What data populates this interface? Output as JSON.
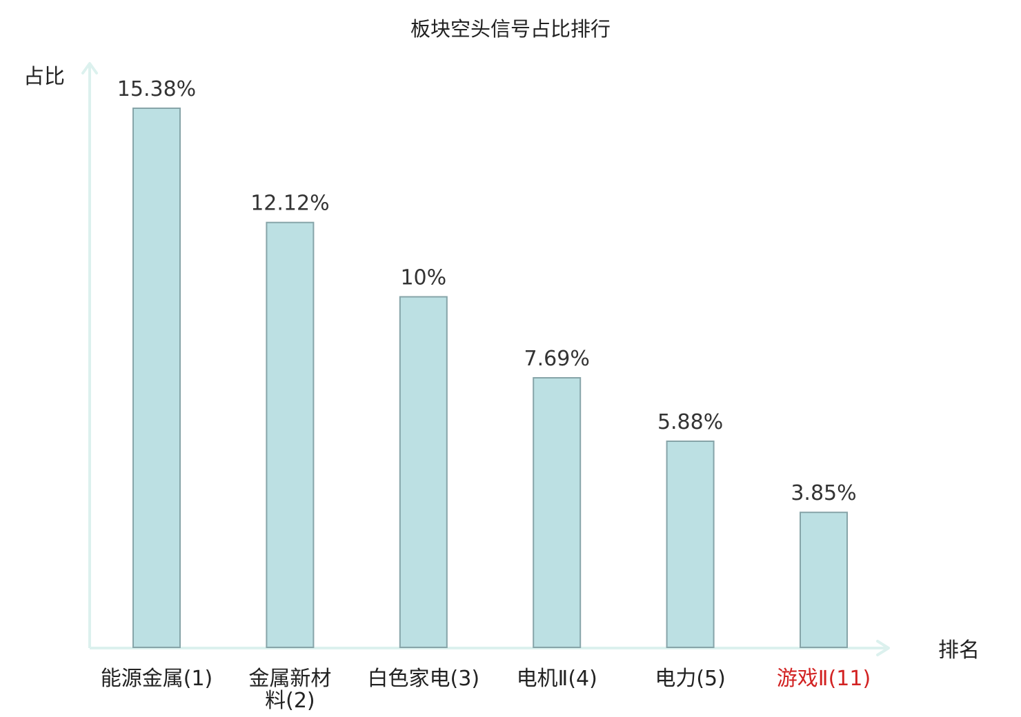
{
  "chart_data": {
    "type": "bar",
    "title": "板块空头信号占比排行",
    "ylabel": "占比",
    "xlabel": "排名",
    "grid": false,
    "legend": "none",
    "ylim": [
      0,
      16.5
    ],
    "categories": [
      {
        "name": "能源金属",
        "rank": "(1)",
        "lines": [
          "能源金属(1)"
        ],
        "highlight": false
      },
      {
        "name": "金属新材料",
        "rank": "(2)",
        "lines": [
          "金属新材",
          "料(2)"
        ],
        "highlight": false
      },
      {
        "name": "白色家电",
        "rank": "(3)",
        "lines": [
          "白色家电(3)"
        ],
        "highlight": false
      },
      {
        "name": "电机Ⅱ",
        "rank": "(4)",
        "lines": [
          "电机Ⅱ(4)"
        ],
        "highlight": false
      },
      {
        "name": "电力",
        "rank": "(5)",
        "lines": [
          "电力(5)"
        ],
        "highlight": false
      },
      {
        "name": "游戏Ⅱ",
        "rank": "(11)",
        "lines": [
          "游戏Ⅱ(11)"
        ],
        "highlight": true
      }
    ],
    "values": [
      15.38,
      12.12,
      10,
      7.69,
      5.88,
      3.85
    ],
    "value_labels": [
      "15.38%",
      "12.12%",
      "10%",
      "7.69%",
      "5.88%",
      "3.85%"
    ]
  },
  "colors": {
    "bar_fill": "#bce0e3",
    "bar_stroke": "#86a4a8",
    "axis": "#dcf1ee",
    "highlight": "#d22222"
  }
}
